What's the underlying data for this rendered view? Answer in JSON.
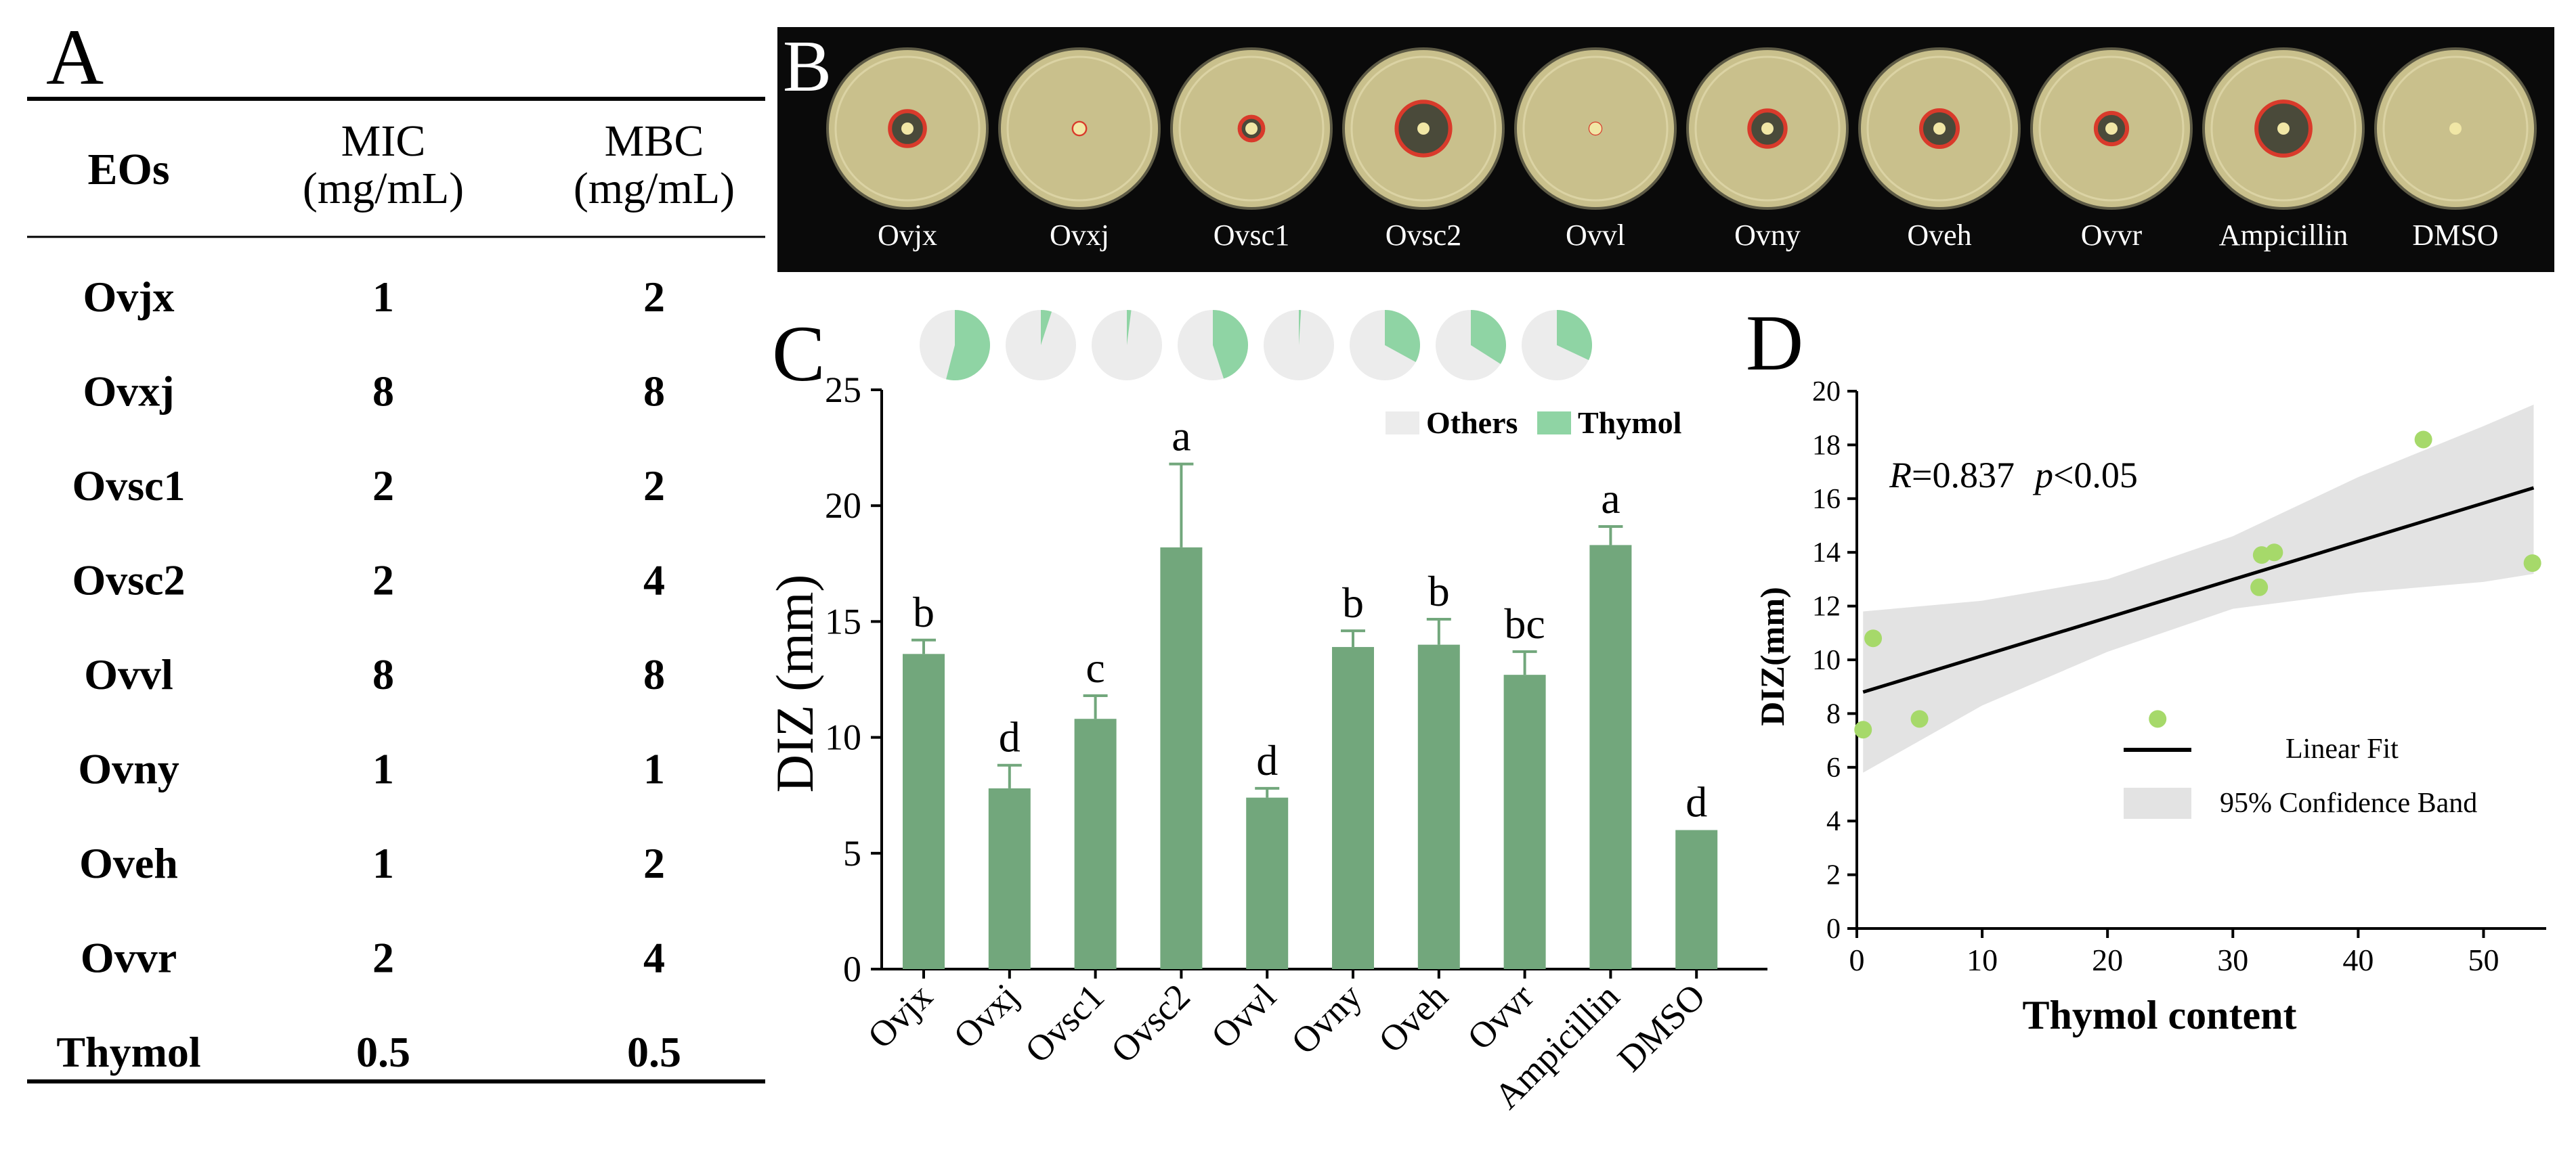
{
  "panels": {
    "a": "A",
    "b": "B",
    "c": "C",
    "d": "D"
  },
  "table": {
    "headers": [
      {
        "line1": "EOs",
        "line2": ""
      },
      {
        "line1": "MIC",
        "line2": "(mg/mL)"
      },
      {
        "line1": "MBC",
        "line2": "(mg/mL)"
      }
    ],
    "rows": [
      [
        "Ovjx",
        "1",
        "2"
      ],
      [
        "Ovxj",
        "8",
        "8"
      ],
      [
        "Ovsc1",
        "2",
        "2"
      ],
      [
        "Ovsc2",
        "2",
        "4"
      ],
      [
        "Ovvl",
        "8",
        "8"
      ],
      [
        "Ovny",
        "1",
        "1"
      ],
      [
        "Oveh",
        "1",
        "2"
      ],
      [
        "Ovvr",
        "2",
        "4"
      ],
      [
        "Thymol",
        "0.5",
        "0.5"
      ]
    ]
  },
  "plates": {
    "labels": [
      "Ovjx",
      "Ovxj",
      "Ovsc1",
      "Ovsc2",
      "Ovvl",
      "Ovny",
      "Oveh",
      "Ovvr",
      "Ampicillin",
      "DMSO"
    ],
    "zone_diameters_mm": [
      13.6,
      7.8,
      10.8,
      18.2,
      7.4,
      13.9,
      14.0,
      12.7,
      18.3,
      6.0
    ],
    "background_color": "#0a0a0a",
    "agar_color": "#c9c08c",
    "zone_color": "#d93a2b"
  },
  "colors": {
    "bar": "#72a77c",
    "thymol": "#8fd4a4",
    "others": "#ececec",
    "band": "#e3e3e3",
    "point": "#a6d96a"
  },
  "chart_data": [
    {
      "type": "bar",
      "title": "",
      "xlabel": "",
      "ylabel": "DIZ (mm)",
      "ylim": [
        0,
        25
      ],
      "yticks": [
        "0",
        "5",
        "10",
        "15",
        "20",
        "25"
      ],
      "categories": [
        "Ovjx",
        "Ovxj",
        "Ovsc1",
        "Ovsc2",
        "Ovvl",
        "Ovny",
        "Oveh",
        "Ovvr",
        "Ampicillin",
        "DMSO"
      ],
      "values": [
        13.6,
        7.8,
        10.8,
        18.2,
        7.4,
        13.9,
        14.0,
        12.7,
        18.3,
        6.0
      ],
      "errors": [
        0.6,
        1.0,
        1.0,
        3.6,
        0.4,
        0.7,
        1.1,
        1.0,
        0.8,
        0
      ],
      "letters": [
        "b",
        "d",
        "c",
        "a",
        "d",
        "b",
        "b",
        "bc",
        "a",
        "d"
      ],
      "legend": {
        "others": "Others",
        "thymol": "Thymol",
        "placement": "top-right"
      },
      "pie_thymol_fraction": [
        0.54,
        0.05,
        0.02,
        0.45,
        0.01,
        0.33,
        0.34,
        0.32
      ]
    },
    {
      "type": "scatter",
      "title": "",
      "xlabel": "Thymol content",
      "ylabel": "DIZ(mm)",
      "xlim": [
        0,
        55
      ],
      "ylim": [
        0,
        20
      ],
      "xticks": [
        "0",
        "10",
        "20",
        "30",
        "40",
        "50"
      ],
      "yticks": [
        "0",
        "2",
        "4",
        "6",
        "8",
        "10",
        "12",
        "14",
        "16",
        "18",
        "20"
      ],
      "points": [
        {
          "x": 0.5,
          "y": 7.4
        },
        {
          "x": 1.3,
          "y": 10.8
        },
        {
          "x": 5.0,
          "y": 7.8
        },
        {
          "x": 24.0,
          "y": 7.8
        },
        {
          "x": 32.1,
          "y": 12.7
        },
        {
          "x": 32.3,
          "y": 13.9
        },
        {
          "x": 33.3,
          "y": 14.0
        },
        {
          "x": 45.2,
          "y": 18.2
        },
        {
          "x": 53.9,
          "y": 13.6
        }
      ],
      "fit": {
        "x0": 0.5,
        "y0": 8.8,
        "x1": 54,
        "y1": 16.4
      },
      "band_upper": [
        [
          0.5,
          11.8
        ],
        [
          10,
          12.2
        ],
        [
          20,
          13.0
        ],
        [
          30,
          14.6
        ],
        [
          40,
          16.8
        ],
        [
          50,
          18.7
        ],
        [
          54,
          19.5
        ]
      ],
      "band_lower": [
        [
          0.5,
          5.8
        ],
        [
          10,
          8.3
        ],
        [
          20,
          10.3
        ],
        [
          30,
          11.9
        ],
        [
          40,
          12.5
        ],
        [
          50,
          12.9
        ],
        [
          54,
          13.2
        ]
      ],
      "annotation": {
        "r_label": "R",
        "r_text": "=0.837",
        "p_label": "p",
        "p_text": "<0.05"
      },
      "legend": {
        "fit": "Linear Fit",
        "band": "95% Confidence Band",
        "placement": "bottom-right"
      }
    }
  ]
}
